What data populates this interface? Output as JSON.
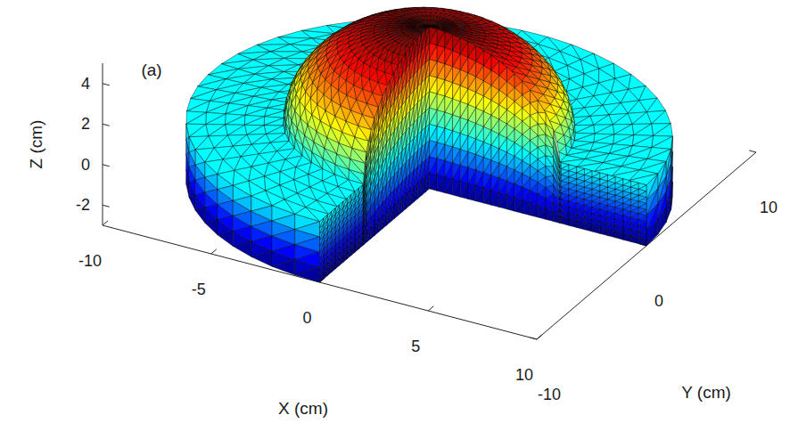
{
  "chart_data": {
    "type": "mesh3d",
    "annotation": "(a)",
    "xlabel": "X (cm)",
    "ylabel": "Y (cm)",
    "zlabel": "Z (cm)",
    "xlim": [
      -10,
      10
    ],
    "xticks": [
      -10,
      -5,
      0,
      5,
      10
    ],
    "ylim": [
      -10,
      10
    ],
    "yticks": [
      -10,
      0,
      10
    ],
    "zlim": [
      -3,
      5
    ],
    "zticks": [
      -2,
      0,
      2,
      4
    ],
    "grid": false,
    "disk": {
      "radius": 10,
      "z_bottom": -3,
      "z_top": 0
    },
    "dome": {
      "radius": 6,
      "height": 5
    },
    "cutout": {
      "x": [
        0,
        10
      ],
      "y": [
        -10,
        0
      ]
    }
  }
}
